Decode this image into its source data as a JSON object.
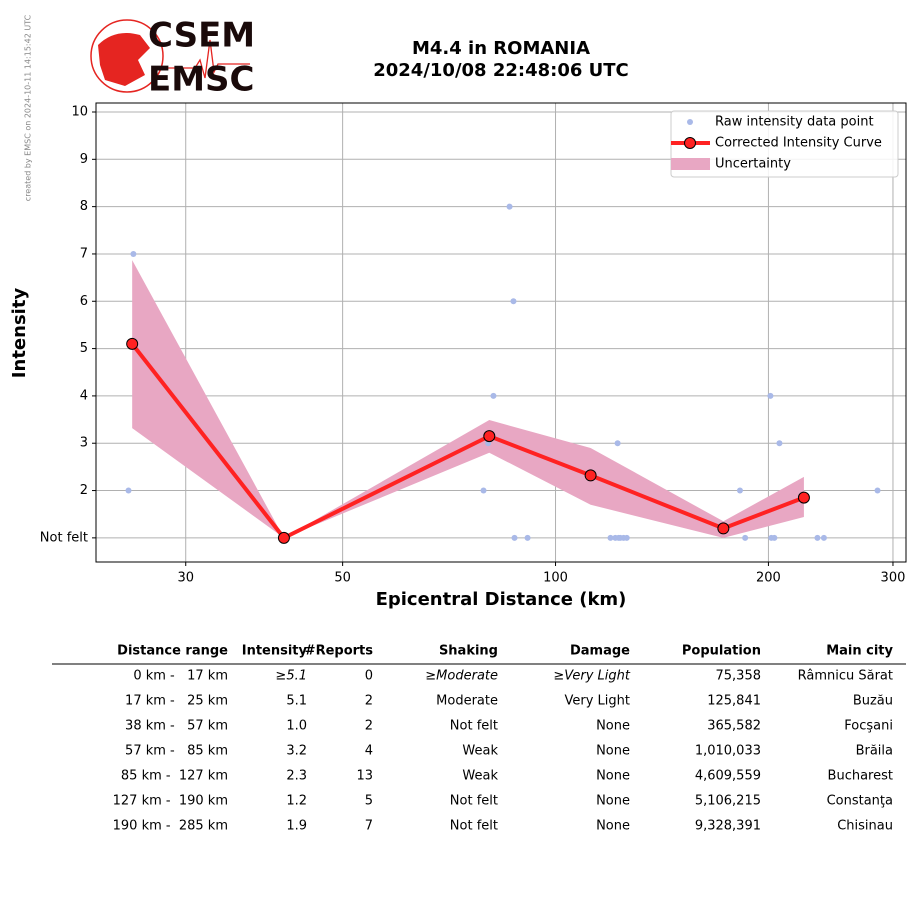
{
  "logo": {
    "top": "CSEM",
    "bottom": "EMSC"
  },
  "credit": "created by EMSC on 2024-10-11 14:15:42 UTC",
  "chart_data": {
    "type": "line",
    "title": "M4.4 in ROMANIA",
    "subtitle": "2024/10/08 22:48:06 UTC",
    "x_label": "Epicentral Distance (km)",
    "y_label": "Intensity",
    "x_scale": "log",
    "grid": true,
    "legend": "upper right",
    "xlim": [
      22.4,
      313
    ],
    "xticks": [
      30,
      50,
      100,
      200,
      300
    ],
    "ylim": [
      0.49,
      10.19
    ],
    "yticks": [
      {
        "value": 1,
        "label": "Not felt"
      },
      2,
      3,
      4,
      5,
      6,
      7,
      8,
      9,
      10
    ],
    "series": [
      {
        "name": "Raw intensity data point",
        "type": "scatter",
        "color": "#a9b9e8",
        "x": [
          24.9,
          25.3,
          86.1,
          87.2,
          81.7,
          79.1,
          80.3,
          122.4,
          87.5,
          91.3,
          119.6,
          121.5,
          122.8,
          123.5,
          124.8,
          126.1,
          182.3,
          185.4,
          201.3,
          207.3,
          201.9,
          203.9,
          234.6,
          239.6,
          285.3
        ],
        "values": [
          2,
          7,
          8,
          6,
          4,
          2,
          3,
          3,
          1,
          1,
          1,
          1,
          1,
          1,
          1,
          1,
          2,
          1,
          4,
          3,
          1,
          1,
          1,
          1,
          2
        ]
      },
      {
        "name": "Corrected Intensity Curve",
        "type": "line",
        "color": "#ff2222",
        "x": [
          25.2,
          41.3,
          80.6,
          112.1,
          172.7,
          224.5
        ],
        "values": [
          5.1,
          1.0,
          3.15,
          2.32,
          1.2,
          1.85
        ]
      },
      {
        "name": "Uncertainty",
        "type": "band",
        "color": "#e8a7c3",
        "x": [
          25.2,
          41.3,
          80.6,
          112.1,
          172.7,
          224.5
        ],
        "upper": [
          6.87,
          1.0,
          3.49,
          2.9,
          1.35,
          2.29
        ],
        "lower": [
          3.32,
          1.0,
          2.8,
          1.7,
          1.0,
          1.44
        ]
      }
    ]
  },
  "table": {
    "header": [
      "Distance range",
      "Intensity",
      "#Reports",
      "Shaking",
      "Damage",
      "Population",
      "Main city"
    ],
    "rows": [
      [
        "0 km -   17 km",
        "≥5.1",
        "0",
        "≥Moderate",
        "≥Very Light",
        "75,358",
        "Râmnicu Sărat"
      ],
      [
        "17 km -   25 km",
        "5.1",
        "2",
        "Moderate",
        "Very Light",
        "125,841",
        "Buzău"
      ],
      [
        "38 km -   57 km",
        "1.0",
        "2",
        "Not felt",
        "None",
        "365,582",
        "Focşani"
      ],
      [
        "57 km -   85 km",
        "3.2",
        "4",
        "Weak",
        "None",
        "1,010,033",
        "Brăila"
      ],
      [
        "85 km -  127 km",
        "2.3",
        "13",
        "Weak",
        "None",
        "4,609,559",
        "Bucharest"
      ],
      [
        "127 km -  190 km",
        "1.2",
        "5",
        "Not felt",
        "None",
        "5,106,215",
        "Constanţa"
      ],
      [
        "190 km -  285 km",
        "1.9",
        "7",
        "Not felt",
        "None",
        "9,328,391",
        "Chisinau"
      ]
    ]
  }
}
